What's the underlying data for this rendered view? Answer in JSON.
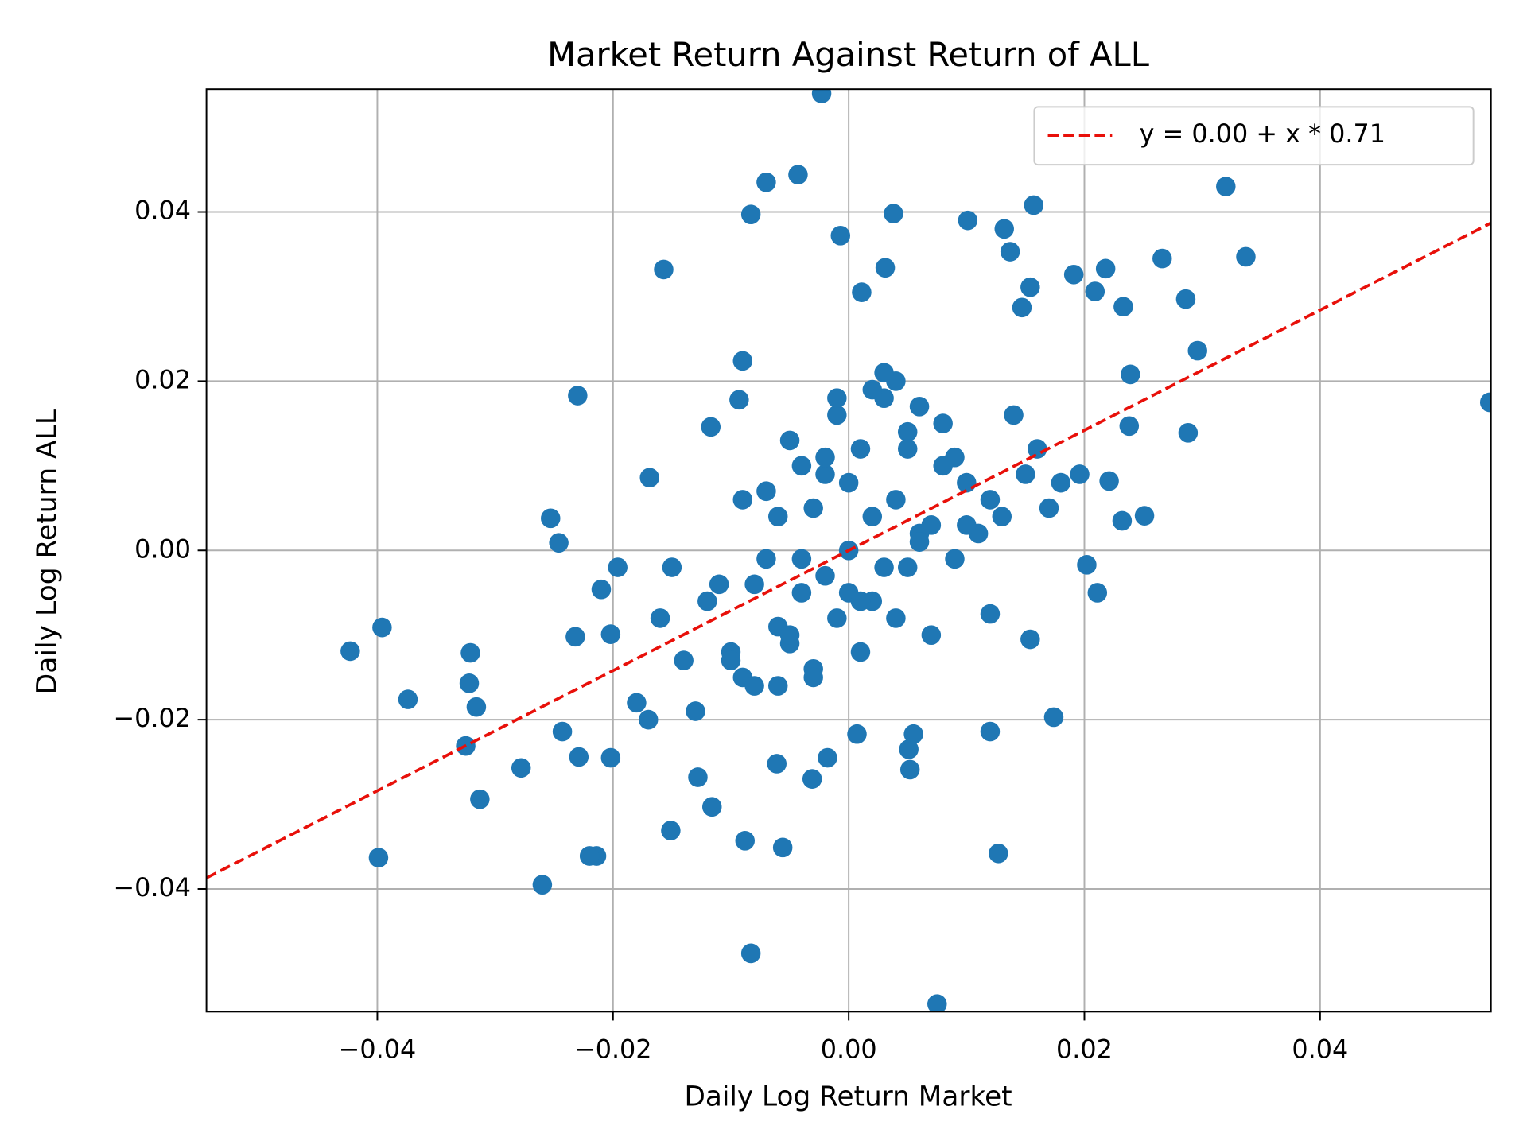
{
  "chart_data": {
    "type": "scatter",
    "title": "Market Return Against Return of ALL",
    "x_label": "Daily Log Return Market",
    "y_label": "Daily Log Return ALL",
    "xlim": [
      -0.0545,
      0.0545
    ],
    "ylim": [
      -0.0545,
      0.0545
    ],
    "xticks": [
      {
        "value": -0.04,
        "label": "−0.04"
      },
      {
        "value": -0.02,
        "label": "−0.02"
      },
      {
        "value": 0,
        "label": "0.00"
      },
      0.02,
      0.04
    ],
    "yticks": [
      {
        "value": -0.04,
        "label": "−0.04"
      },
      {
        "value": -0.02,
        "label": "−0.02"
      },
      {
        "value": 0,
        "label": "0.00"
      },
      0.02,
      0.04
    ],
    "grid": true,
    "legend": "upper right",
    "series": [
      {
        "color": "#1f77b4",
        "x": [
          -0.0023,
          -0.0043,
          -0.007,
          -0.0083,
          0.0038,
          -0.0007,
          -0.0157,
          0.0157,
          0.032,
          0.0337,
          0.0266,
          0.0286,
          0.0296,
          0.0288,
          0.0544,
          0.0101,
          0.0132,
          0.0137,
          0.0191,
          0.0218,
          0.0233,
          0.0209,
          0.0154,
          0.0147,
          0.0031,
          0.0011,
          -0.023,
          -0.0253,
          -0.0246,
          -0.0423,
          -0.0396,
          -0.0374,
          -0.0399,
          -0.0321,
          -0.0322,
          -0.0316,
          -0.0325,
          -0.0313,
          -0.0278,
          -0.026,
          -0.0214,
          -0.022,
          -0.0083,
          0.0075,
          0.0127,
          0.0174,
          0.012,
          -0.0056,
          -0.0088,
          -0.0151,
          -0.0128,
          -0.0116,
          -0.0202,
          -0.0229,
          -0.0243,
          -0.0232,
          -0.0202,
          -0.021,
          -0.0196,
          -0.0169,
          -0.0117,
          -0.0093,
          -0.009,
          0.0211,
          0.0202,
          0.0154,
          0.012,
          0.0051,
          0.0055,
          0.0052,
          0.0007,
          -0.0031,
          -0.0018,
          -0.0061,
          0.0251,
          0.0232,
          0.0221,
          0.0196,
          0.0238,
          0.0239,
          0.0,
          0.002,
          -0.002,
          0.004,
          -0.004,
          0.006,
          -0.006,
          0.008,
          -0.008,
          0.01,
          -0.01,
          0.001,
          -0.001,
          0.003,
          -0.003,
          0.005,
          -0.005,
          0.007,
          -0.007,
          0.009,
          -0.009,
          0.012,
          -0.012,
          0.014,
          -0.014,
          0.0,
          0.002,
          -0.002,
          0.004,
          -0.004,
          0.006,
          -0.006,
          0.008,
          -0.008,
          0.011,
          -0.011,
          0.001,
          -0.001,
          0.003,
          -0.003,
          0.005,
          -0.005,
          0.007,
          -0.007,
          0.013,
          -0.013,
          0.016,
          -0.016,
          0.018,
          -0.018,
          0.0,
          0.002,
          -0.002,
          0.004,
          -0.004,
          0.006,
          -0.006,
          0.009,
          -0.009,
          0.015,
          -0.015,
          0.017,
          -0.017,
          0.001,
          -0.001,
          0.003,
          -0.003,
          0.005,
          -0.005,
          0.01,
          -0.01
        ],
        "values": [
          0.054,
          0.0444,
          0.0435,
          0.0397,
          0.0398,
          0.0372,
          0.0332,
          0.0408,
          0.043,
          0.0347,
          0.0345,
          0.0297,
          0.0236,
          0.0139,
          0.0175,
          0.039,
          0.038,
          0.0353,
          0.0326,
          0.0333,
          0.0288,
          0.0306,
          0.0311,
          0.0287,
          0.0334,
          0.0305,
          0.0183,
          0.0038,
          0.0009,
          -0.0119,
          -0.0091,
          -0.0176,
          -0.0363,
          -0.0121,
          -0.0157,
          -0.0185,
          -0.0231,
          -0.0294,
          -0.0257,
          -0.0395,
          -0.0361,
          -0.0361,
          -0.0476,
          -0.0536,
          -0.0358,
          -0.0197,
          -0.0214,
          -0.0351,
          -0.0343,
          -0.0331,
          -0.0268,
          -0.0303,
          -0.0245,
          -0.0244,
          -0.0214,
          -0.0102,
          -0.0099,
          -0.0046,
          -0.002,
          0.0086,
          0.0146,
          0.0178,
          0.0224,
          -0.005,
          -0.0017,
          -0.0105,
          -0.0075,
          -0.0235,
          -0.0217,
          -0.0259,
          -0.0217,
          -0.027,
          -0.0245,
          -0.0252,
          0.0041,
          0.0035,
          0.0082,
          0.009,
          0.0147,
          0.0208,
          0.0,
          0.004,
          -0.003,
          0.006,
          -0.005,
          0.002,
          -0.009,
          0.01,
          -0.004,
          0.008,
          -0.012,
          0.012,
          -0.008,
          -0.002,
          0.005,
          0.014,
          -0.011,
          0.003,
          -0.001,
          0.011,
          -0.015,
          0.006,
          -0.006,
          0.016,
          -0.013,
          0.008,
          -0.006,
          0.009,
          -0.008,
          0.01,
          0.017,
          0.004,
          0.015,
          -0.016,
          0.002,
          -0.004,
          -0.012,
          0.016,
          0.018,
          -0.014,
          -0.002,
          0.013,
          -0.01,
          0.007,
          0.004,
          -0.019,
          0.012,
          -0.008,
          0.008,
          -0.018,
          -0.005,
          0.019,
          0.011,
          0.02,
          -0.001,
          0.001,
          -0.016,
          -0.001,
          0.006,
          0.009,
          -0.002,
          0.005,
          -0.02,
          -0.006,
          0.018,
          0.021,
          -0.015,
          0.012,
          -0.01,
          0.003,
          -0.013
        ]
      }
    ],
    "fit": {
      "name": "y = 0.00 + x * 0.71",
      "color": "#e8100a",
      "intercept": 0.0,
      "slope": 0.71
    }
  }
}
